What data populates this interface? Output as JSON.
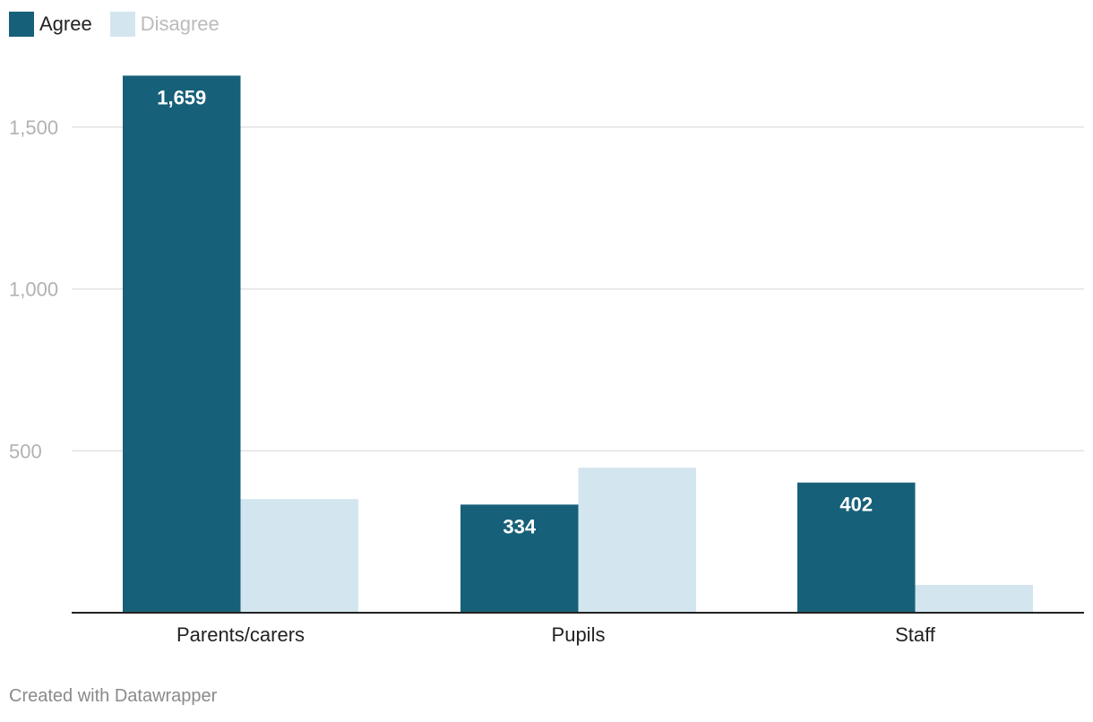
{
  "chart_data": {
    "type": "bar",
    "categories": [
      "Parents/carers",
      "Pupils",
      "Staff"
    ],
    "series": [
      {
        "name": "Agree",
        "values": [
          1659,
          334,
          402
        ],
        "color": "#176079",
        "labels": [
          "1,659",
          "334",
          "402"
        ]
      },
      {
        "name": "Disagree",
        "values": [
          351,
          448,
          86
        ],
        "color": "#d3e6ef",
        "labels": [
          "",
          "",
          ""
        ]
      }
    ],
    "yticks": [
      500,
      1000,
      1500
    ],
    "ytick_labels": [
      "500",
      "1,000",
      "1,500"
    ],
    "ylim": [
      0,
      1700
    ],
    "grid": true,
    "legend_position": "top-left",
    "title": "",
    "xlabel": "",
    "ylabel": ""
  },
  "legend": {
    "items": [
      {
        "label": "Agree",
        "color": "#176079",
        "text_color": "#222222"
      },
      {
        "label": "Disagree",
        "color": "#d3e6ef",
        "text_color": "#bbbbbb"
      }
    ]
  },
  "footer": {
    "credit": "Created with Datawrapper"
  }
}
